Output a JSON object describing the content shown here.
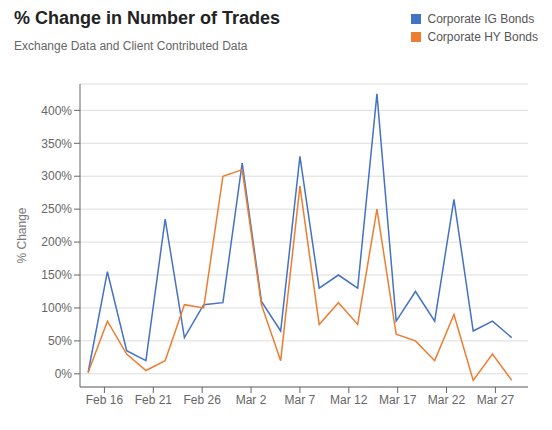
{
  "chart_data": {
    "type": "line",
    "title": "% Change in Number of Trades",
    "subtitle": "Exchange Data and Client Contributed Data",
    "ylabel": "% Change",
    "x": [
      0,
      1.1818,
      2.3636,
      3.5455,
      4.7273,
      5.9091,
      7.0909,
      8.2727,
      9.4545,
      10.6364,
      11.8182,
      13,
      14.1818,
      15.3636,
      16.5455,
      17.7273,
      18.9091,
      20.0909,
      21.2727,
      22.4545,
      23.6364,
      24.8182,
      26
    ],
    "series": [
      {
        "name": "Corporate IG Bonds",
        "color": "#4472C4",
        "values": [
          2,
          155,
          35,
          20,
          235,
          55,
          105,
          108,
          320,
          110,
          65,
          330,
          130,
          150,
          130,
          425,
          80,
          125,
          80,
          265,
          65,
          80,
          55
        ]
      },
      {
        "name": "Corporate HY Bonds",
        "color": "#ED7D31",
        "values": [
          2,
          80,
          30,
          5,
          20,
          105,
          100,
          300,
          310,
          105,
          20,
          285,
          75,
          108,
          75,
          250,
          60,
          50,
          20,
          90,
          -10,
          30,
          -10
        ]
      }
    ],
    "xlim": [
      -0.5,
      27
    ],
    "xticks": [
      {
        "value": 1,
        "label": "Feb 16"
      },
      {
        "value": 4,
        "label": "Feb 21"
      },
      {
        "value": 7,
        "label": "Feb 26"
      },
      {
        "value": 10,
        "label": "Mar 2"
      },
      {
        "value": 13,
        "label": "Mar 7"
      },
      {
        "value": 16,
        "label": "Mar 12"
      },
      {
        "value": 19,
        "label": "Mar 17"
      },
      {
        "value": 22,
        "label": "Mar 22"
      },
      {
        "value": 25,
        "label": "Mar 27"
      }
    ],
    "ylim": [
      -20,
      440
    ],
    "yticks": [
      {
        "value": 0,
        "label": "0%"
      },
      {
        "value": 50,
        "label": "50%"
      },
      {
        "value": 100,
        "label": "100%"
      },
      {
        "value": 150,
        "label": "150%"
      },
      {
        "value": 200,
        "label": "200%"
      },
      {
        "value": 250,
        "label": "250%"
      },
      {
        "value": 300,
        "label": "300%"
      },
      {
        "value": 350,
        "label": "350%"
      },
      {
        "value": 400,
        "label": "400%"
      }
    ],
    "grid": true,
    "legend": "upper right"
  }
}
